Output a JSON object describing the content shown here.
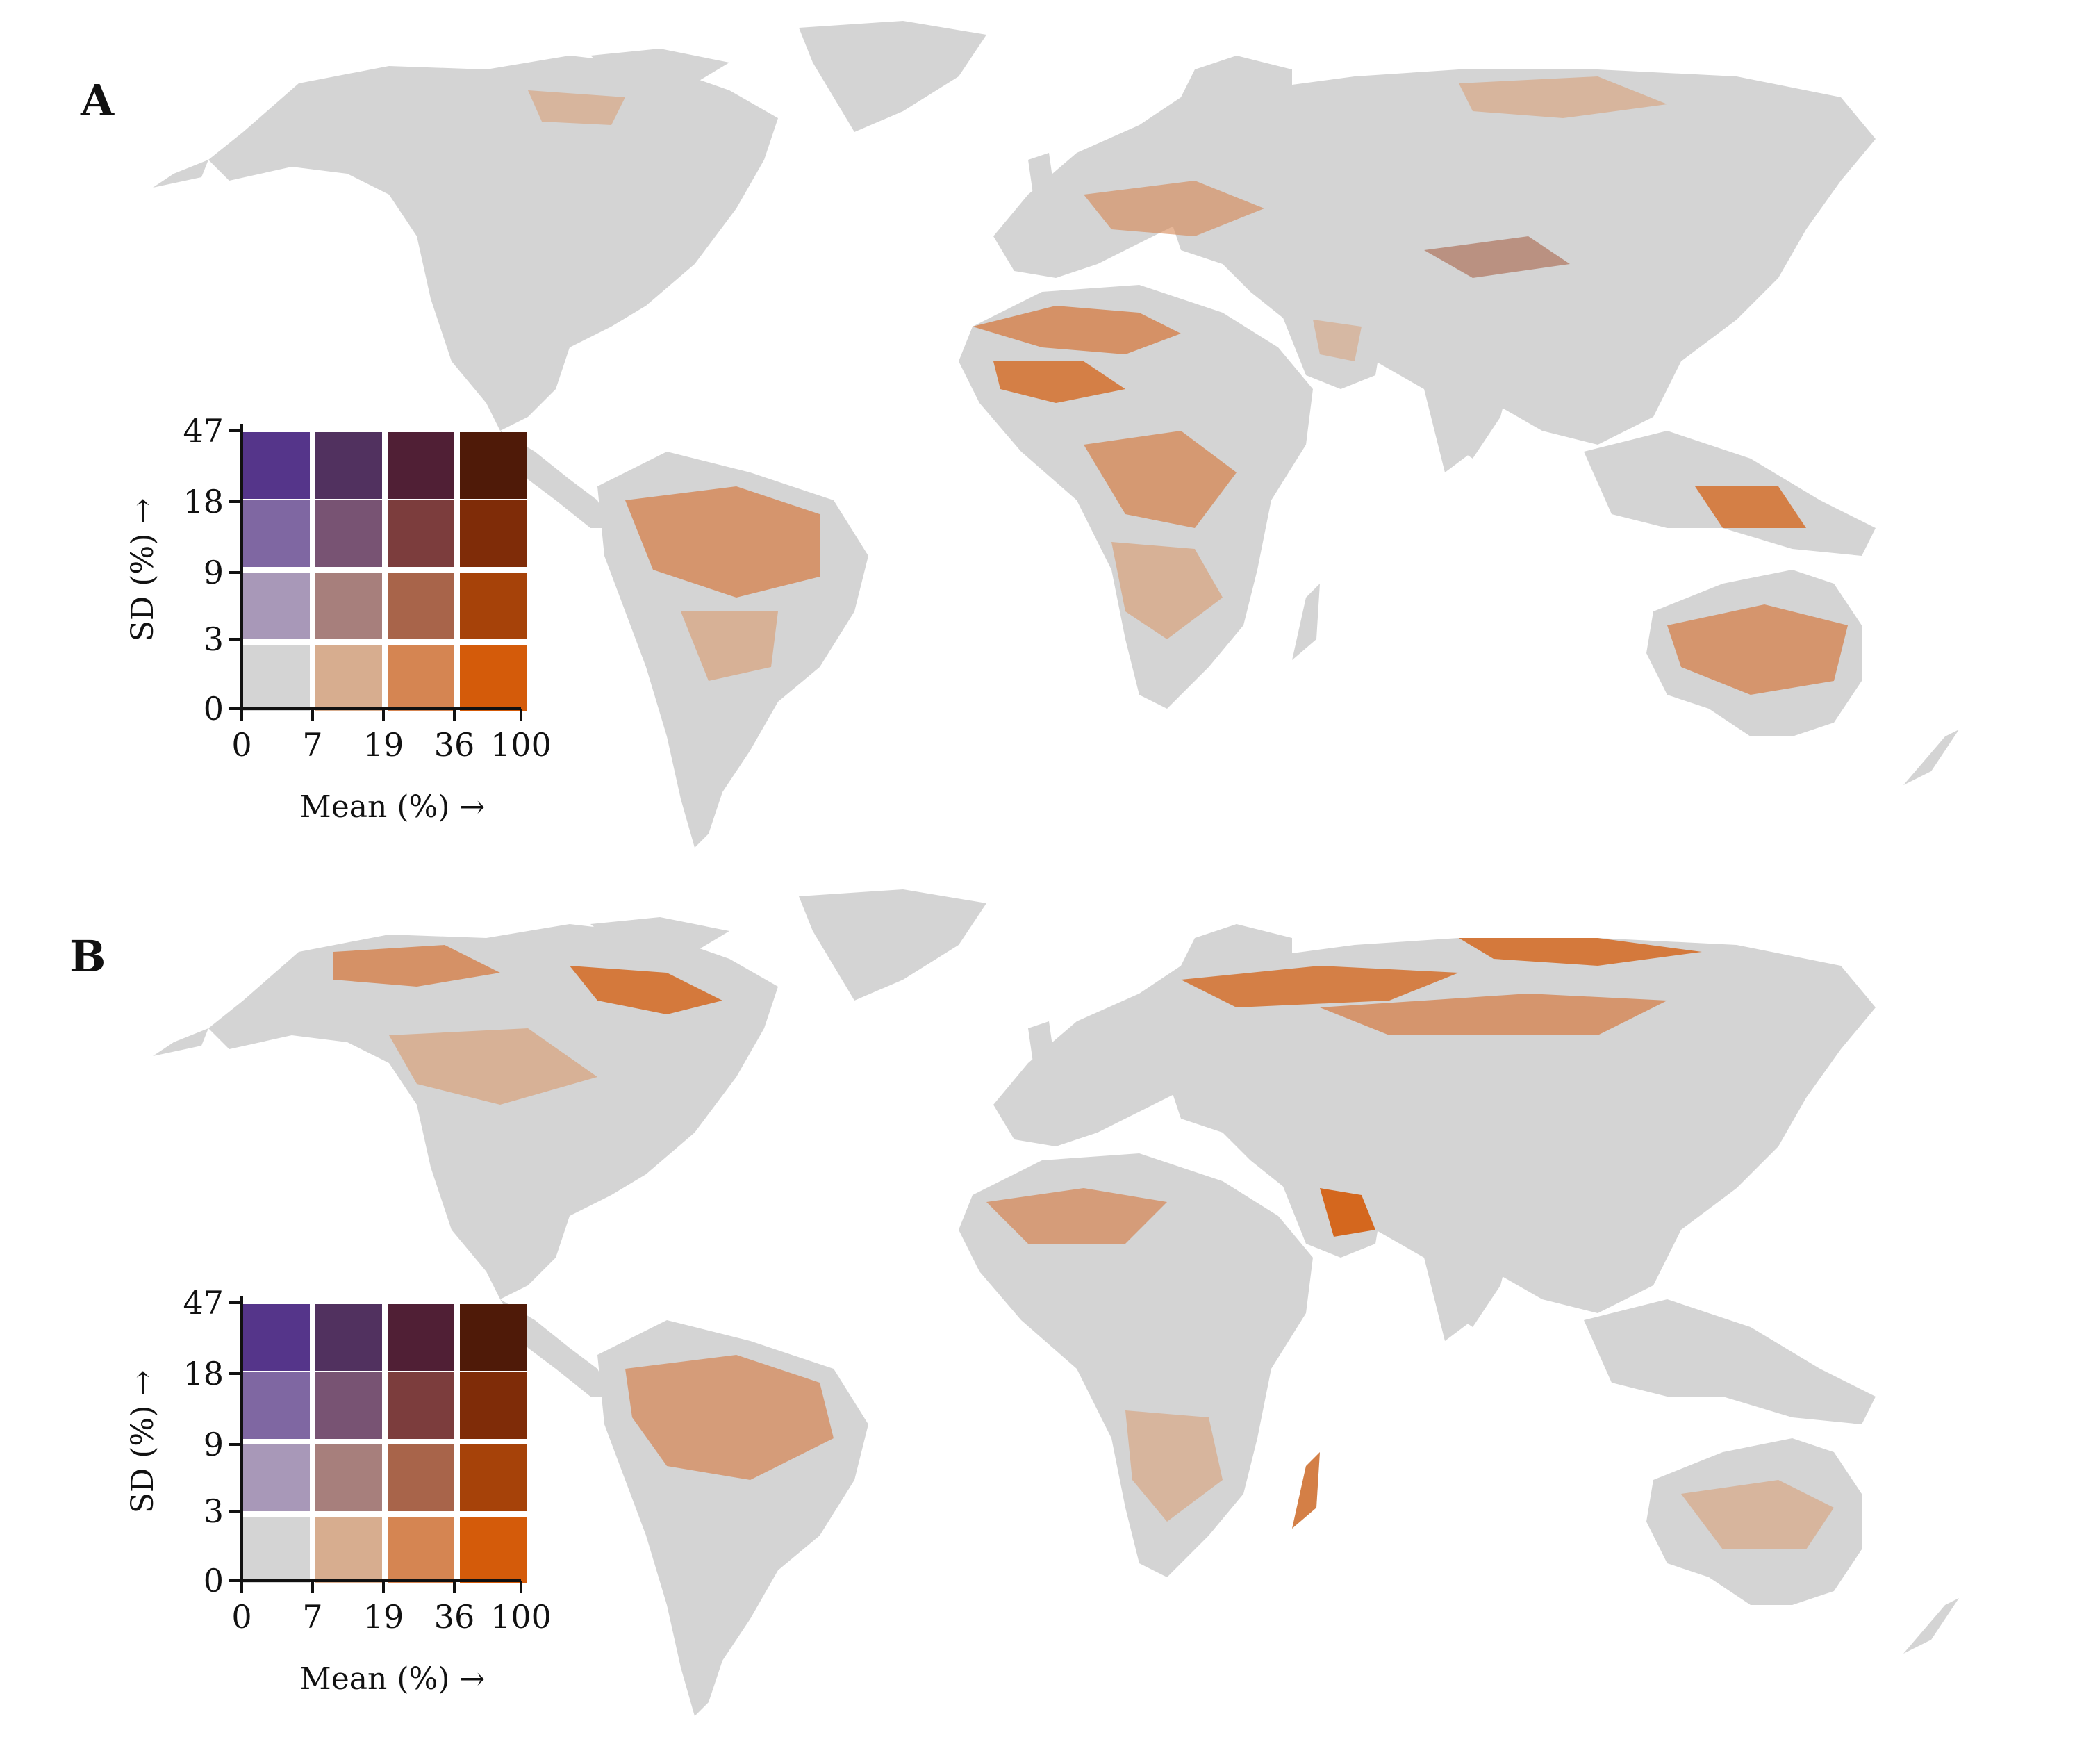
{
  "panels": [
    {
      "letter": "A"
    },
    {
      "letter": "B"
    }
  ],
  "legend": {
    "y_title": "SD (%) →",
    "x_title": "Mean (%) →",
    "y_ticks": [
      "47",
      "18",
      "9",
      "3",
      "0"
    ],
    "x_ticks": [
      "0",
      "7",
      "19",
      "36",
      "100"
    ],
    "grid_colors_top_to_bottom": [
      [
        "#55358a",
        "#51315f",
        "#501f35",
        "#4f1a08"
      ],
      [
        "#7f67a2",
        "#785373",
        "#7c3d3d",
        "#7f2c08"
      ],
      [
        "#a898b8",
        "#a77f7c",
        "#a8644a",
        "#a64209"
      ],
      [
        "#d4d4d4",
        "#d7ad8f",
        "#d58552",
        "#d45b0a"
      ]
    ]
  },
  "colors": {
    "land": "#d4d4d4",
    "light_orange": "#d7ad8f",
    "mid_orange": "#d58552",
    "dark_orange": "#d45b0a",
    "brown": "#a8644a"
  }
}
